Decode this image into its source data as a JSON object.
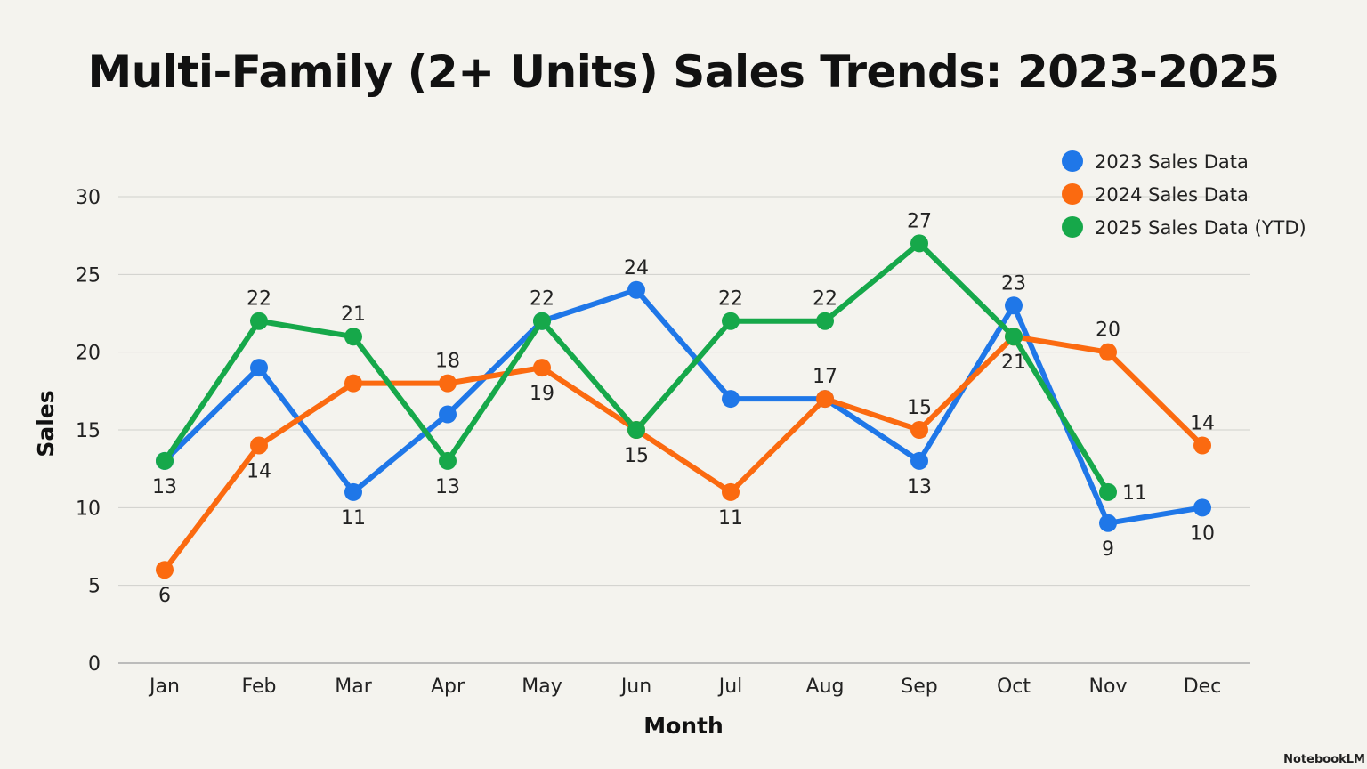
{
  "watermark": "NotebookLM",
  "chart_data": {
    "type": "line",
    "title": "Multi-Family (2+ Units) Sales Trends: 2023-2025",
    "xlabel": "Month",
    "ylabel": "Sales",
    "ylim": [
      0,
      30
    ],
    "yticks": [
      0,
      5,
      10,
      15,
      20,
      25,
      30
    ],
    "grid": true,
    "legend_position": "top-right",
    "categories": [
      "Jan",
      "Feb",
      "Mar",
      "Apr",
      "May",
      "Jun",
      "Jul",
      "Aug",
      "Sep",
      "Oct",
      "Nov",
      "Dec"
    ],
    "series": [
      {
        "name": "2023 Sales Data",
        "color": "#1f77e8",
        "values": [
          13,
          19,
          11,
          16,
          22,
          24,
          17,
          17,
          13,
          23,
          9,
          10
        ]
      },
      {
        "name": "2024 Sales Data",
        "color": "#fb6a10",
        "values": [
          6,
          14,
          18,
          18,
          19,
          15,
          11,
          17,
          15,
          21,
          20,
          14
        ]
      },
      {
        "name": "2025 Sales Data (YTD)",
        "color": "#16a84a",
        "values": [
          13,
          22,
          21,
          13,
          22,
          15,
          22,
          22,
          27,
          21,
          11,
          null
        ]
      }
    ],
    "data_labels": [
      {
        "s": 2,
        "i": 0,
        "pos": "below"
      },
      {
        "s": 1,
        "i": 0,
        "pos": "below"
      },
      {
        "s": 2,
        "i": 1,
        "pos": "above"
      },
      {
        "s": 1,
        "i": 1,
        "pos": "below"
      },
      {
        "s": 2,
        "i": 2,
        "pos": "above"
      },
      {
        "s": 0,
        "i": 2,
        "pos": "below"
      },
      {
        "s": 1,
        "i": 3,
        "pos": "above"
      },
      {
        "s": 2,
        "i": 3,
        "pos": "below"
      },
      {
        "s": 2,
        "i": 4,
        "pos": "above"
      },
      {
        "s": 1,
        "i": 4,
        "pos": "below"
      },
      {
        "s": 0,
        "i": 5,
        "pos": "above"
      },
      {
        "s": 2,
        "i": 5,
        "pos": "below"
      },
      {
        "s": 2,
        "i": 6,
        "pos": "above"
      },
      {
        "s": 1,
        "i": 6,
        "pos": "below"
      },
      {
        "s": 2,
        "i": 7,
        "pos": "above"
      },
      {
        "s": 1,
        "i": 7,
        "pos": "above"
      },
      {
        "s": 2,
        "i": 8,
        "pos": "above"
      },
      {
        "s": 1,
        "i": 8,
        "pos": "above"
      },
      {
        "s": 0,
        "i": 8,
        "pos": "below"
      },
      {
        "s": 0,
        "i": 9,
        "pos": "above"
      },
      {
        "s": 1,
        "i": 9,
        "pos": "below"
      },
      {
        "s": 1,
        "i": 10,
        "pos": "above"
      },
      {
        "s": 2,
        "i": 10,
        "pos": "right"
      },
      {
        "s": 0,
        "i": 10,
        "pos": "below"
      },
      {
        "s": 1,
        "i": 11,
        "pos": "above"
      },
      {
        "s": 0,
        "i": 11,
        "pos": "below"
      }
    ]
  }
}
